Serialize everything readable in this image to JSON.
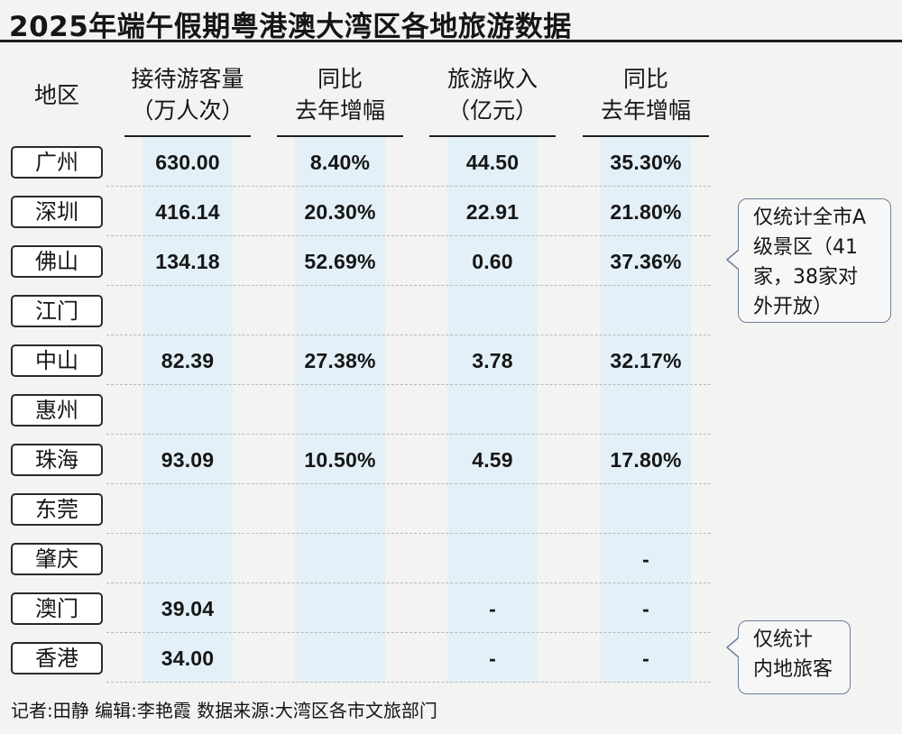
{
  "title": "2025年端午假期粤港澳大湾区各地旅游数据",
  "headers": {
    "region": "地区",
    "visitors_l1": "接待游客量",
    "visitors_l2": "（万人次）",
    "visitors_yoy_l1": "同比",
    "visitors_yoy_l2": "去年增幅",
    "revenue_l1": "旅游收入",
    "revenue_l2": "（亿元）",
    "revenue_yoy_l1": "同比",
    "revenue_yoy_l2": "去年增幅"
  },
  "chart_data": {
    "type": "table",
    "columns": [
      "地区",
      "接待游客量（万人次）",
      "同比去年增幅",
      "旅游收入（亿元）",
      "同比去年增幅"
    ],
    "rows": [
      {
        "city": "广州",
        "visitors": "630.00",
        "visitors_yoy": "8.40%",
        "revenue": "44.50",
        "revenue_yoy": "35.30%"
      },
      {
        "city": "深圳",
        "visitors": "416.14",
        "visitors_yoy": "20.30%",
        "revenue": "22.91",
        "revenue_yoy": "21.80%"
      },
      {
        "city": "佛山",
        "visitors": "134.18",
        "visitors_yoy": "52.69%",
        "revenue": "0.60",
        "revenue_yoy": "37.36%"
      },
      {
        "city": "江门",
        "visitors": "",
        "visitors_yoy": "",
        "revenue": "",
        "revenue_yoy": ""
      },
      {
        "city": "中山",
        "visitors": "82.39",
        "visitors_yoy": "27.38%",
        "revenue": "3.78",
        "revenue_yoy": "32.17%"
      },
      {
        "city": "惠州",
        "visitors": "",
        "visitors_yoy": "",
        "revenue": "",
        "revenue_yoy": ""
      },
      {
        "city": "珠海",
        "visitors": "93.09",
        "visitors_yoy": "10.50%",
        "revenue": "4.59",
        "revenue_yoy": "17.80%"
      },
      {
        "city": "东莞",
        "visitors": "",
        "visitors_yoy": "",
        "revenue": "",
        "revenue_yoy": ""
      },
      {
        "city": "肇庆",
        "visitors": "",
        "visitors_yoy": "",
        "revenue": "",
        "revenue_yoy": "-"
      },
      {
        "city": "澳门",
        "visitors": "39.04",
        "visitors_yoy": "",
        "revenue": "-",
        "revenue_yoy": "-"
      },
      {
        "city": "香港",
        "visitors": "34.00",
        "visitors_yoy": "",
        "revenue": "-",
        "revenue_yoy": "-"
      }
    ]
  },
  "notes": {
    "foshan": [
      "仅统计全市A",
      "级景区（41",
      "家，38家对",
      "外开放）"
    ],
    "hongkong": [
      "仅统计",
      "内地旅客"
    ]
  },
  "footer": "记者:田静  编辑:李艳霞  数据来源:大湾区各市文旅部门",
  "colors": {
    "band": "#e3f0f8",
    "background": "#f3f3f1",
    "callout_border": "#6b7f99"
  }
}
